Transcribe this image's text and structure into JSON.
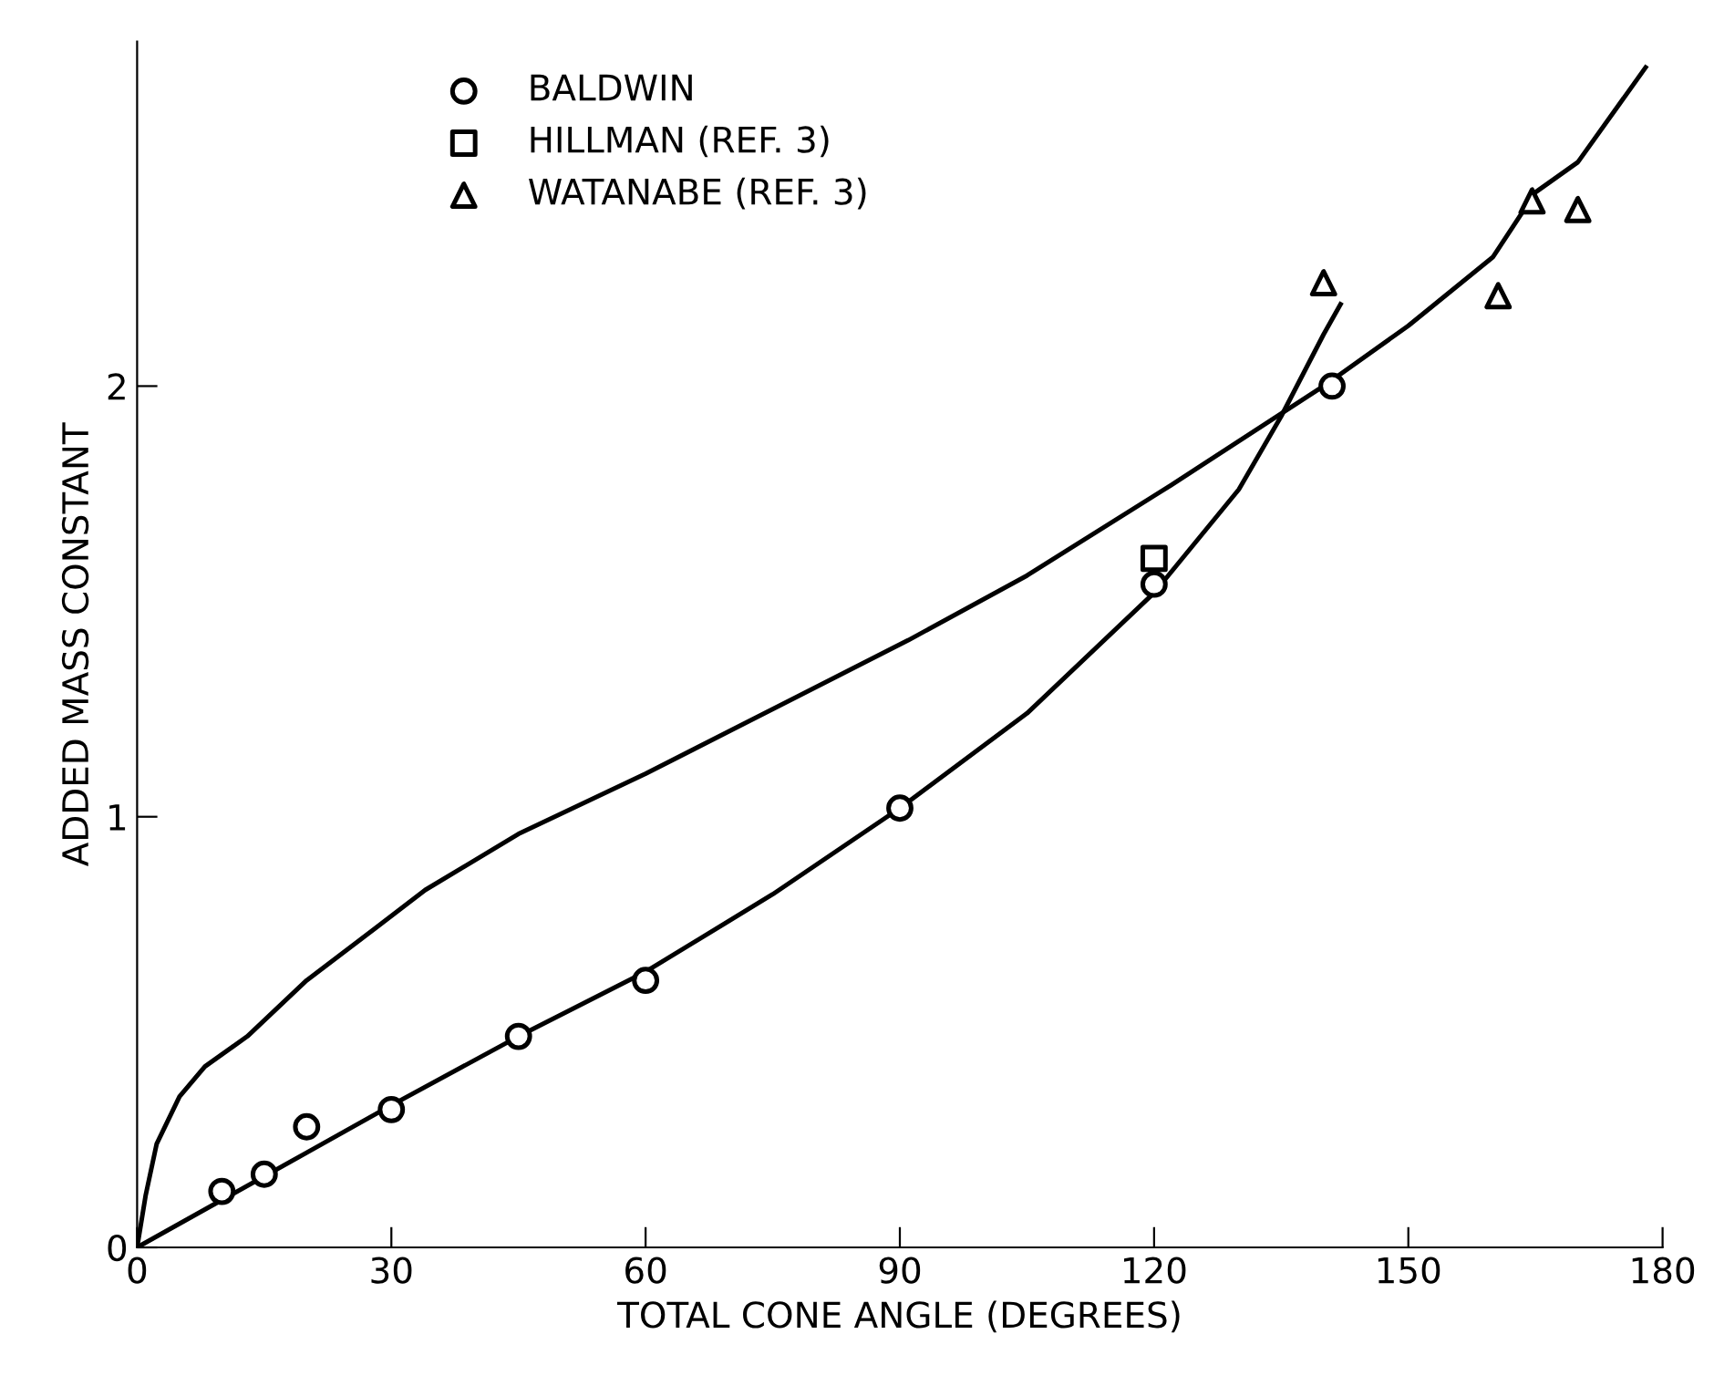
{
  "chart_data": {
    "type": "scatter",
    "xlabel": "TOTAL CONE ANGLE (DEGREES)",
    "ylabel": "ADDED MASS CONSTANT",
    "xlim": [
      0,
      180
    ],
    "ylim": [
      0,
      2.8
    ],
    "xticks": [
      0,
      30,
      60,
      90,
      120,
      150,
      180
    ],
    "yticks": [
      0,
      1,
      2
    ],
    "grid": false,
    "legend": "top left",
    "series": [
      {
        "name": "BALDWIN",
        "color": "#000000",
        "marker": "circle",
        "x": [
          10,
          15,
          20,
          30,
          45,
          60,
          90,
          120,
          141
        ],
        "values": [
          0.13,
          0.17,
          0.28,
          0.32,
          0.49,
          0.62,
          1.02,
          1.54,
          2.0
        ]
      },
      {
        "name": "HILLMAN (REF. 3)",
        "color": "#000000",
        "marker": "square",
        "x": [
          120
        ],
        "values": [
          1.6
        ]
      },
      {
        "name": "WATANABE (REF. 3)",
        "color": "#000000",
        "marker": "triangle",
        "x": [
          140,
          160.6,
          164.6,
          170
        ],
        "values": [
          2.24,
          2.21,
          2.43,
          2.41
        ]
      },
      {
        "type": "line",
        "color": "#000000",
        "marker": "none",
        "line_style": "solid",
        "x": [
          0,
          10,
          20,
          30,
          45,
          60,
          75,
          90,
          105,
          120,
          130,
          135,
          140,
          142
        ],
        "values": [
          0,
          0.11,
          0.22,
          0.33,
          0.49,
          0.64,
          0.82,
          1.02,
          1.24,
          1.52,
          1.76,
          1.93,
          2.12,
          2.19
        ]
      },
      {
        "type": "line",
        "color": "#000000",
        "marker": "none",
        "line_style": "solid",
        "x": [
          0,
          1,
          2.3,
          5,
          8,
          13,
          20,
          28.7,
          34,
          45,
          60,
          70,
          91,
          105,
          122,
          140,
          150,
          160,
          165,
          170,
          178
        ],
        "values": [
          0,
          0.12,
          0.24,
          0.35,
          0.42,
          0.49,
          0.62,
          0.75,
          0.83,
          0.96,
          1.1,
          1.2,
          1.41,
          1.56,
          1.77,
          2.0,
          2.14,
          2.3,
          2.45,
          2.52,
          2.74
        ]
      }
    ]
  }
}
